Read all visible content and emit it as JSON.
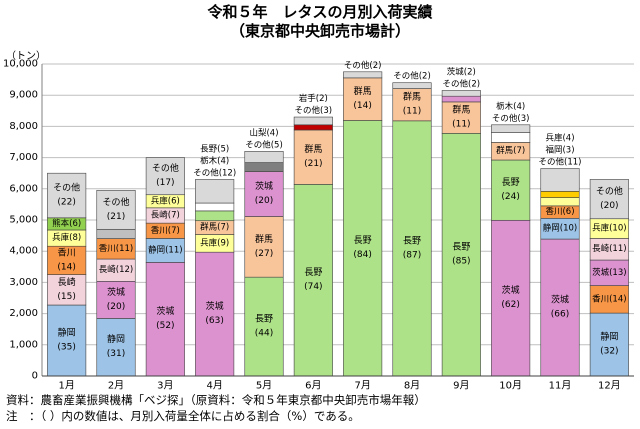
{
  "title_line1": "令和５年　レタスの月別入荷実績",
  "title_line2": "（東京都中央卸売市場計）",
  "unit_label": "（トン）",
  "note_source": "資料：農畜産業振興機構「ベジ探」（原資料：令和５年東京都中央卸売市場年報）",
  "note_explain": "注　：（ ）内の数値は、月別入荷量全体に占める割合（%）である。",
  "colors": {
    "静岡": "#9dc3e6",
    "長崎": "#f2d3dc",
    "香川": "#f79646",
    "兵庫": "#ffff99",
    "熊本": "#92d050",
    "茨城": "#dc92cf",
    "群馬": "#f8c49a",
    "長野": "#aee288",
    "岩手": "#c00000",
    "山梨": "#7f7f7f",
    "栃木": "#ffffff",
    "千葉": "#bfbfbf",
    "福岡": "#ffcc00",
    "その他": "#d9d9d9"
  },
  "chart_data": {
    "type": "bar",
    "stacked": true,
    "ylabel": "（トン）",
    "ylim": [
      0,
      10000
    ],
    "ytick_step": 1000,
    "grid": true,
    "categories": [
      "1月",
      "2月",
      "3月",
      "4月",
      "5月",
      "6月",
      "7月",
      "8月",
      "9月",
      "10月",
      "11月",
      "12月"
    ],
    "months": [
      {
        "total": 6500,
        "segments": [
          {
            "name": "静岡",
            "pct": 35,
            "value": 2275
          },
          {
            "name": "長崎",
            "pct": 15,
            "value": 975
          },
          {
            "name": "香川",
            "pct": 14,
            "value": 910
          },
          {
            "name": "兵庫",
            "pct": 8,
            "value": 520
          },
          {
            "name": "熊本",
            "pct": 6,
            "value": 390
          },
          {
            "name": "その他",
            "pct": 22,
            "value": 1430
          }
        ]
      },
      {
        "total": 5950,
        "segments": [
          {
            "name": "静岡",
            "pct": 31,
            "value": 1845
          },
          {
            "name": "茨城",
            "pct": 20,
            "value": 1190
          },
          {
            "name": "長崎",
            "pct": 12,
            "value": 714
          },
          {
            "name": "香川",
            "pct": 11,
            "value": 655
          },
          {
            "name": "千葉",
            "pct": 5,
            "value": 298
          },
          {
            "name": "その他",
            "pct": 21,
            "value": 1250
          }
        ]
      },
      {
        "total": 7000,
        "segments": [
          {
            "name": "茨城",
            "pct": 52,
            "value": 3640
          },
          {
            "name": "静岡",
            "pct": 11,
            "value": 770
          },
          {
            "name": "香川",
            "pct": 7,
            "value": 490
          },
          {
            "name": "長崎",
            "pct": 7,
            "value": 490
          },
          {
            "name": "兵庫",
            "pct": 6,
            "value": 420
          },
          {
            "name": "その他",
            "pct": 17,
            "value": 1190
          }
        ]
      },
      {
        "total": 6300,
        "segments": [
          {
            "name": "茨城",
            "pct": 63,
            "value": 3969
          },
          {
            "name": "兵庫",
            "pct": 9,
            "value": 567
          },
          {
            "name": "群馬",
            "pct": 7,
            "value": 441
          },
          {
            "name": "長野",
            "pct": 5,
            "value": 315
          },
          {
            "name": "栃木",
            "pct": 4,
            "value": 252
          },
          {
            "name": "その他",
            "pct": 12,
            "value": 756
          }
        ]
      },
      {
        "total": 7200,
        "segments": [
          {
            "name": "長野",
            "pct": 44,
            "value": 3168
          },
          {
            "name": "群馬",
            "pct": 27,
            "value": 1944
          },
          {
            "name": "茨城",
            "pct": 20,
            "value": 1440
          },
          {
            "name": "山梨",
            "pct": 4,
            "value": 288
          },
          {
            "name": "その他",
            "pct": 5,
            "value": 360
          }
        ]
      },
      {
        "total": 8300,
        "segments": [
          {
            "name": "長野",
            "pct": 74,
            "value": 6142
          },
          {
            "name": "群馬",
            "pct": 21,
            "value": 1743
          },
          {
            "name": "岩手",
            "pct": 2,
            "value": 166
          },
          {
            "name": "その他",
            "pct": 3,
            "value": 249
          }
        ]
      },
      {
        "total": 9750,
        "segments": [
          {
            "name": "長野",
            "pct": 84,
            "value": 8190
          },
          {
            "name": "群馬",
            "pct": 14,
            "value": 1365
          },
          {
            "name": "その他",
            "pct": 2,
            "value": 195
          }
        ]
      },
      {
        "total": 9400,
        "segments": [
          {
            "name": "長野",
            "pct": 87,
            "value": 8178
          },
          {
            "name": "群馬",
            "pct": 11,
            "value": 1034
          },
          {
            "name": "その他",
            "pct": 2,
            "value": 188
          }
        ]
      },
      {
        "total": 9150,
        "segments": [
          {
            "name": "長野",
            "pct": 85,
            "value": 7778
          },
          {
            "name": "群馬",
            "pct": 11,
            "value": 1007
          },
          {
            "name": "茨城",
            "pct": 2,
            "value": 183
          },
          {
            "name": "その他",
            "pct": 2,
            "value": 183
          }
        ]
      },
      {
        "total": 8050,
        "segments": [
          {
            "name": "茨城",
            "pct": 62,
            "value": 4991
          },
          {
            "name": "長野",
            "pct": 24,
            "value": 1932
          },
          {
            "name": "群馬",
            "pct": 7,
            "value": 564
          },
          {
            "name": "栃木",
            "pct": 4,
            "value": 322
          },
          {
            "name": "その他",
            "pct": 3,
            "value": 242
          }
        ]
      },
      {
        "total": 6650,
        "segments": [
          {
            "name": "茨城",
            "pct": 66,
            "value": 4389
          },
          {
            "name": "静岡",
            "pct": 10,
            "value": 665
          },
          {
            "name": "香川",
            "pct": 6,
            "value": 399
          },
          {
            "name": "兵庫",
            "pct": 4,
            "value": 266
          },
          {
            "name": "福岡",
            "pct": 3,
            "value": 200
          },
          {
            "name": "その他",
            "pct": 11,
            "value": 731
          }
        ]
      },
      {
        "total": 6300,
        "segments": [
          {
            "name": "静岡",
            "pct": 32,
            "value": 2016
          },
          {
            "name": "香川",
            "pct": 14,
            "value": 882
          },
          {
            "name": "茨城",
            "pct": 13,
            "value": 819
          },
          {
            "name": "長崎",
            "pct": 11,
            "value": 693
          },
          {
            "name": "兵庫",
            "pct": 10,
            "value": 630
          },
          {
            "name": "その他",
            "pct": 20,
            "value": 1260
          }
        ]
      }
    ]
  }
}
